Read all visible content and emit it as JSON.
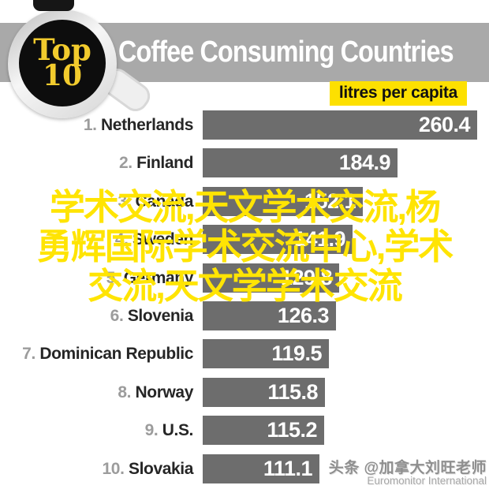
{
  "badge": {
    "line1": "Top",
    "line2": "10"
  },
  "header": {
    "title": "Coffee Consuming Countries"
  },
  "unit_label": "litres per capita",
  "chart_data": {
    "type": "bar",
    "orientation": "horizontal",
    "title": "Coffee Consuming Countries",
    "unit": "litres per capita",
    "ranks": [
      1,
      2,
      3,
      4,
      5,
      6,
      7,
      8,
      9,
      10
    ],
    "categories": [
      "Netherlands",
      "Finland",
      "Canada",
      "Sweden",
      "Germany",
      "Slovenia",
      "Dominican Republic",
      "Norway",
      "U.S.",
      "Slovakia"
    ],
    "values": [
      260.4,
      184.9,
      152.1,
      141.9,
      129.8,
      126.3,
      119.5,
      115.8,
      115.2,
      111.1
    ],
    "value_labels": [
      "260.4",
      "184.9",
      "152.1",
      "141.9",
      "129.8",
      "126.3",
      "119.5",
      "115.8",
      "115.2",
      "111.1"
    ],
    "xlim": [
      0,
      260.4
    ],
    "bar_color": "#6d6d6d",
    "value_text_color": "#ffffff",
    "legend": "none",
    "grid": false
  },
  "watermark": {
    "line1": "学术交流,天文学术交流,杨",
    "line2": "勇辉国际学术交流中心,学术",
    "line3": "交流,天文学学术交流",
    "color": "#ffe403"
  },
  "credit": {
    "line1": "头条 @加拿大刘旺老师",
    "line2": "Euromonitor International"
  },
  "colors": {
    "banner_bg": "#a9a9a9",
    "banner_text": "#ffffff",
    "bar_gray": "#6d6d6d",
    "accent_yellow": "#fde000",
    "badge_text_yellow": "#f2cb2d",
    "rank_gray": "#9c9c9c",
    "name_dark": "#262626",
    "cup_black": "#0d0d0d"
  }
}
